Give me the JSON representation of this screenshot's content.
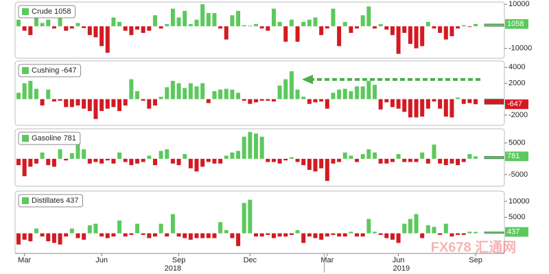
{
  "chart_data": [
    {
      "type": "bar",
      "name": "Crude",
      "color": "#5cc95c",
      "negative_color": "#d31a22",
      "ylim": [
        -14500,
        11000
      ],
      "yticks": [
        -10000,
        10000
      ],
      "values": [
        3000,
        -2000,
        -4000,
        6000,
        1500,
        3000,
        -1000,
        6000,
        -2000,
        -1000,
        1500,
        -800,
        -4000,
        -5000,
        -9000,
        -12000,
        4000,
        2000,
        -2000,
        -4000,
        -1500,
        -3000,
        -2000,
        5000,
        -1000,
        1000,
        8000,
        4000,
        7000,
        1000,
        3000,
        10000,
        6000,
        6000,
        -1000,
        -6000,
        5000,
        7000,
        500,
        300,
        1000,
        -1000,
        -2000,
        8000,
        2000,
        -7000,
        3000,
        -7000,
        2000,
        3000,
        4000,
        -4000,
        -1000,
        8000,
        -9000,
        2000,
        -3000,
        -1000,
        5000,
        9000,
        -1000,
        1000,
        -1500,
        -4000,
        -12500,
        -3000,
        -8000,
        -10000,
        -9000,
        2000,
        -1000,
        -3000,
        -6000,
        -4500,
        -1000,
        500,
        -300,
        1058
      ]
    },
    {
      "type": "bar",
      "name": "Cushing",
      "color": "#5cc95c",
      "negative_color": "#d31a22",
      "ylim": [
        -3300,
        4800
      ],
      "yticks": [
        -2000,
        2000,
        4000
      ],
      "values": [
        800,
        2000,
        2300,
        1300,
        -800,
        1200,
        -300,
        -200,
        -1000,
        -1000,
        -800,
        -1200,
        -1500,
        -2500,
        -1500,
        -1200,
        -1000,
        -1500,
        -800,
        2500,
        1000,
        -200,
        -1200,
        -800,
        300,
        1500,
        2300,
        2000,
        1400,
        2000,
        1600,
        2000,
        -500,
        1000,
        1200,
        1300,
        1200,
        800,
        -200,
        -600,
        -400,
        -200,
        -200,
        -300,
        1700,
        2500,
        3500,
        1200,
        300,
        -600,
        -400,
        -300,
        -1200,
        800,
        1200,
        1300,
        1000,
        1600,
        1600,
        2300,
        1800,
        -1300,
        -400,
        -1000,
        -1200,
        -1600,
        -2300,
        -2300,
        -2200,
        -1200,
        -300,
        -1200,
        -2200,
        -2300,
        200,
        -600,
        -500,
        -647
      ]
    },
    {
      "type": "bar",
      "name": "Gasoline",
      "color": "#5cc95c",
      "negative_color": "#d31a22",
      "ylim": [
        -8700,
        9500
      ],
      "yticks": [
        -5000,
        5000
      ],
      "values": [
        -2000,
        -5500,
        -2500,
        -1500,
        2000,
        -2000,
        -2500,
        3000,
        -500,
        1800,
        5000,
        3000,
        -1500,
        -1000,
        -1500,
        -500,
        -1500,
        2000,
        -1000,
        -2000,
        -1500,
        -1000,
        1000,
        -2000,
        2500,
        3000,
        -1500,
        -2000,
        1500,
        -3000,
        -4000,
        -2500,
        -1000,
        -1500,
        -1500,
        1000,
        2000,
        2500,
        7000,
        8500,
        8000,
        7000,
        -1000,
        -1000,
        -1500,
        -500,
        500,
        -1000,
        -2000,
        -3500,
        -4000,
        -3000,
        -7000,
        -1500,
        -1000,
        2000,
        1000,
        -1000,
        1500,
        3000,
        2000,
        -1500,
        -1500,
        -1000,
        1500,
        -1000,
        -1000,
        -1000,
        2000,
        -1500,
        4500,
        -1500,
        -2000,
        -1500,
        -2000,
        -1000,
        1500,
        781
      ]
    },
    {
      "type": "bar",
      "name": "Distillates",
      "color": "#5cc95c",
      "negative_color": "#d31a22",
      "ylim": [
        -6300,
        13200
      ],
      "yticks": [
        5000,
        10000
      ],
      "values": [
        -3500,
        -2000,
        -2500,
        1500,
        -1000,
        -2500,
        -3000,
        -3500,
        -1000,
        1500,
        -1500,
        -2000,
        2500,
        3000,
        -1000,
        -1500,
        -1000,
        4000,
        -1000,
        -500,
        3000,
        -500,
        -1500,
        -1000,
        3000,
        -1000,
        6000,
        -1000,
        -1500,
        -2000,
        -1500,
        -1500,
        -1500,
        -1500,
        3500,
        1000,
        -1500,
        -4000,
        9500,
        10500,
        -1000,
        -1000,
        -500,
        -1500,
        -1000,
        -1000,
        -500,
        1000,
        -3000,
        -1000,
        -1500,
        -2000,
        -1000,
        -500,
        -1000,
        -1000,
        500,
        -1000,
        -1000,
        4500,
        500,
        -500,
        -1500,
        -2000,
        -3000,
        3000,
        4500,
        6000,
        -1500,
        2500,
        2000,
        -500,
        3000,
        -1000,
        -500,
        -500,
        500,
        437
      ],
      "categories": [
        null,
        "Mar",
        null,
        null,
        null,
        null,
        null,
        null,
        null,
        null,
        null,
        null,
        null,
        null,
        "Jun",
        null,
        null,
        null,
        null,
        null,
        null,
        null,
        null,
        null,
        null,
        null,
        null,
        "Sep",
        null,
        null,
        null,
        null,
        null,
        null,
        null,
        null,
        null,
        null,
        null,
        "Dec",
        null,
        null,
        null,
        null,
        null,
        null,
        null,
        null,
        null,
        null,
        null,
        null,
        "Mar",
        null,
        null,
        null,
        null,
        null,
        null,
        null,
        null,
        null,
        null,
        null,
        "Jun",
        null,
        null,
        null,
        null,
        null,
        null,
        null,
        null,
        null,
        null,
        null,
        null,
        "Sep"
      ],
      "year_labels": [
        "2018",
        "2019"
      ]
    }
  ],
  "watermark": "FX678 汇通网"
}
